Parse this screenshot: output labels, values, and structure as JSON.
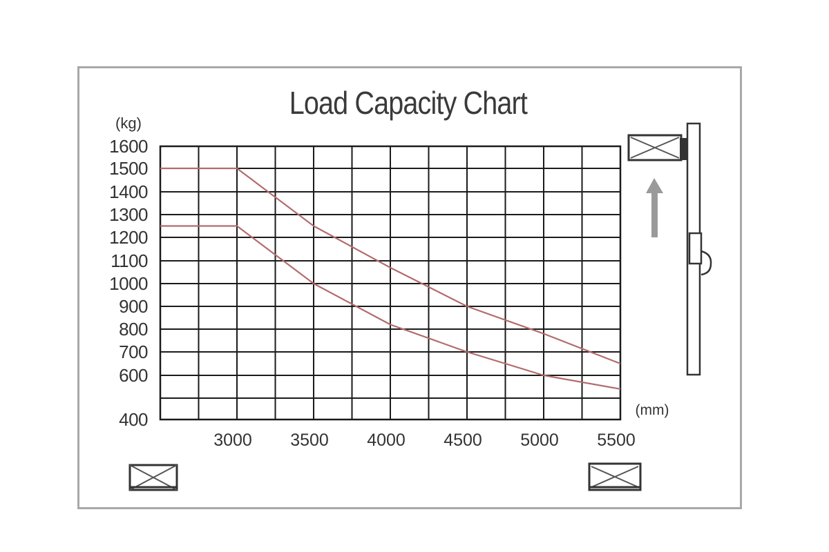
{
  "chart_data": {
    "type": "line",
    "title": "Load Capacity Chart",
    "y_unit": "(kg)",
    "x_unit": "(mm)",
    "y_ticks": [
      "1600",
      "1500",
      "1400",
      "1300",
      "1200",
      "1100",
      "1000",
      "900",
      "800",
      "700",
      "600",
      "400"
    ],
    "x_ticks": [
      "3000",
      "3500",
      "4000",
      "4500",
      "5000",
      "5500"
    ],
    "series": [
      {
        "x": [
          2500,
          3000,
          3500,
          4000,
          4500,
          5000,
          5500
        ],
        "y": [
          1500,
          1500,
          1250,
          1070,
          900,
          780,
          650
        ]
      },
      {
        "x": [
          2500,
          3000,
          3500,
          4000,
          4500,
          5000,
          5500
        ],
        "y": [
          1250,
          1250,
          1000,
          820,
          700,
          600,
          540
        ]
      }
    ],
    "grid": true
  },
  "colors": {
    "line": "#b36b6b",
    "grid": "#1a1a1a",
    "frame": "#a8a8a8",
    "arrow": "#9a9a9a"
  },
  "icons": [
    "pallet-icon-bottom-left",
    "pallet-icon-bottom-right",
    "pallet-icon-raised",
    "lift-up-arrow-icon",
    "forklift-mast-icon"
  ]
}
